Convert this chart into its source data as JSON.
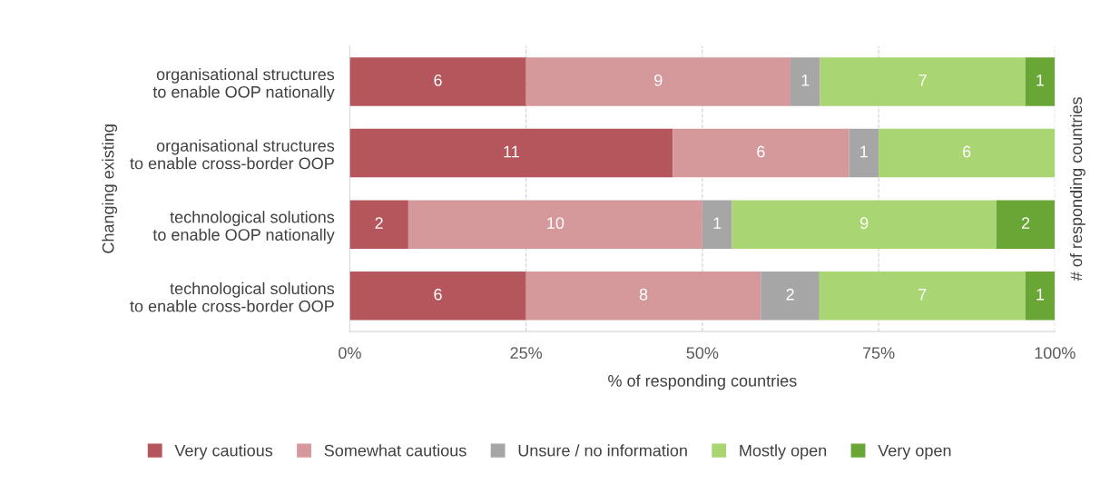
{
  "chart_data": {
    "type": "bar",
    "orientation": "horizontal",
    "stacked": true,
    "ylabel": "Changing existing",
    "xlabel": "% of responding countries",
    "y2label": "# of responding countries",
    "categories": [
      "organisational structures\nto enable OOP nationally",
      "organisational structures\nto enable cross-border OOP",
      "technological solutions\nto enable OOP nationally",
      "technological solutions\nto enable cross-border OOP"
    ],
    "series": [
      {
        "name": "Very cautious",
        "color": "#b5565c",
        "values": [
          25,
          45.8,
          8.3,
          25
        ]
      },
      {
        "name": "Somewhat cautious",
        "color": "#d5999c",
        "values": [
          37.5,
          25,
          41.7,
          33.3
        ]
      },
      {
        "name": "Unsure / no information",
        "color": "#a6a6a6",
        "values": [
          4.2,
          4.2,
          4.2,
          8.3
        ]
      },
      {
        "name": "Mostly open",
        "color": "#a9d672",
        "values": [
          29.1,
          25,
          37.5,
          29.2
        ]
      },
      {
        "name": "Very open",
        "color": "#6aa636",
        "values": [
          4.2,
          0,
          8.3,
          4.2
        ]
      }
    ],
    "annotations": [
      "6",
      "9",
      "1",
      "7",
      "1",
      "11",
      "6",
      "1",
      "6",
      "2",
      "10",
      "1",
      "9",
      "2",
      "6",
      "8",
      "2",
      "7",
      "1"
    ],
    "xlim": [
      0,
      100
    ],
    "xticks": [
      {
        "value": 0,
        "label": "0%"
      },
      {
        "value": 25,
        "label": "25%"
      },
      {
        "value": 50,
        "label": "50%"
      },
      {
        "value": 75,
        "label": "75%"
      },
      {
        "value": 100,
        "label": "100%"
      }
    ],
    "grid": "x",
    "legend": "bottom"
  }
}
